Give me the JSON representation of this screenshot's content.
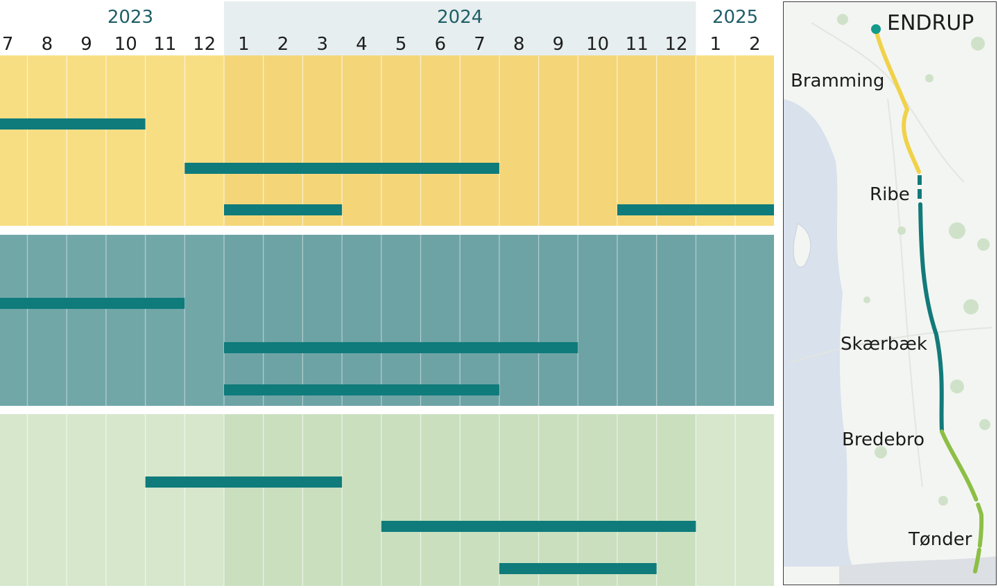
{
  "chart_data": {
    "type": "gantt",
    "years": [
      {
        "label": "2023",
        "start_month": 7,
        "end_month": 12,
        "year": 2023
      },
      {
        "label": "2024",
        "start_month": 1,
        "end_month": 12,
        "year": 2024
      },
      {
        "label": "2025",
        "start_month": 1,
        "end_month": 2,
        "year": 2025
      }
    ],
    "months": [
      "7",
      "8",
      "9",
      "10",
      "11",
      "12",
      "1",
      "2",
      "3",
      "4",
      "5",
      "6",
      "7",
      "8",
      "9",
      "10",
      "11",
      "12",
      "1",
      "2"
    ],
    "groups": [
      {
        "color": "#f8de83",
        "color_highlight": "#f4d679",
        "bars": [
          {
            "start": "2023-06",
            "end": "2023-10"
          },
          {
            "start": "2023-11",
            "end": "2024-07"
          },
          {
            "start": "2023-12",
            "end": "2024-03"
          },
          {
            "start": "2024-10",
            "end": "2025-02"
          }
        ],
        "rows": [
          0,
          1,
          2,
          2
        ]
      },
      {
        "color": "#72a7a8",
        "color_highlight": "#6da3a5",
        "bars": [
          {
            "start": "2023-06",
            "end": "2023-11"
          },
          {
            "start": "2023-12",
            "end": "2024-09"
          },
          {
            "start": "2023-12",
            "end": "2024-07"
          }
        ],
        "rows": [
          0,
          1,
          2
        ]
      },
      {
        "color": "#d6e7cc",
        "color_highlight": "#c9dfbe",
        "bars": [
          {
            "start": "2023-10",
            "end": "2024-03"
          },
          {
            "start": "2024-04",
            "end": "2024-12"
          },
          {
            "start": "2024-07",
            "end": "2024-11"
          }
        ],
        "rows": [
          0,
          1,
          2
        ]
      }
    ],
    "bar_color": "#0f7b7b",
    "highlight_year": "2024"
  },
  "map": {
    "stations": [
      {
        "name": "ENDRUP"
      },
      {
        "name": "Bramming"
      },
      {
        "name": "Ribe"
      },
      {
        "name": "Skærbæk"
      },
      {
        "name": "Bredebro"
      },
      {
        "name": "Tønder"
      }
    ],
    "segment_colors": [
      "#f0d24a",
      "#127a7a",
      "#8cbf45"
    ],
    "water_color": "#d8e1ec",
    "land_color": "#f3f5f2"
  }
}
